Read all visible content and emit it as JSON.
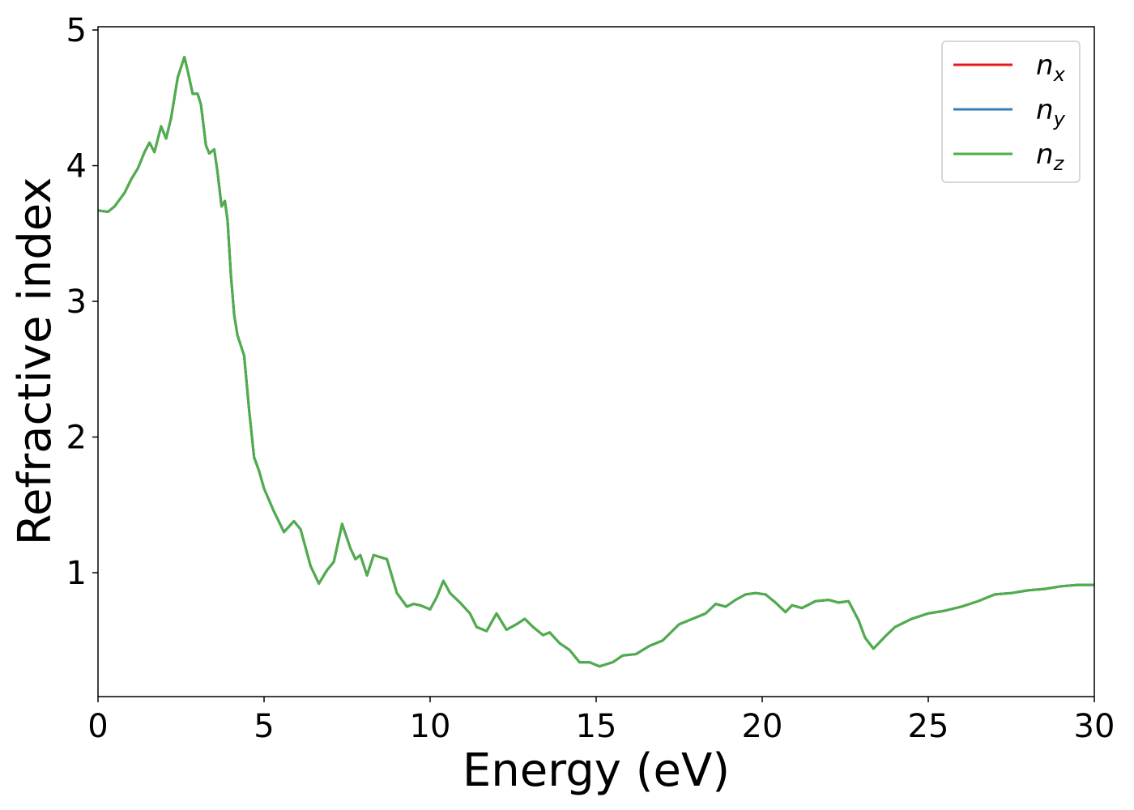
{
  "chart_data": {
    "type": "line",
    "xlabel": "Energy (eV)",
    "ylabel": "Refractive index",
    "x": [
      0,
      0.3,
      0.5,
      0.8,
      1.0,
      1.2,
      1.4,
      1.55,
      1.7,
      1.9,
      2.05,
      2.2,
      2.4,
      2.6,
      2.7,
      2.85,
      3.0,
      3.1,
      3.25,
      3.35,
      3.5,
      3.6,
      3.72,
      3.82,
      3.9,
      4.0,
      4.1,
      4.2,
      4.4,
      4.55,
      4.7,
      4.85,
      5.0,
      5.3,
      5.6,
      5.9,
      6.1,
      6.4,
      6.65,
      6.9,
      7.1,
      7.35,
      7.6,
      7.75,
      7.9,
      8.1,
      8.3,
      8.7,
      9.0,
      9.3,
      9.5,
      9.7,
      10.0,
      10.2,
      10.4,
      10.6,
      10.9,
      11.2,
      11.4,
      11.7,
      12.0,
      12.3,
      12.6,
      12.85,
      13.1,
      13.4,
      13.6,
      13.9,
      14.2,
      14.5,
      14.8,
      15.1,
      15.5,
      15.8,
      16.2,
      16.6,
      17.0,
      17.5,
      18.0,
      18.3,
      18.6,
      18.9,
      19.2,
      19.5,
      19.8,
      20.1,
      20.4,
      20.7,
      20.9,
      21.2,
      21.6,
      22.0,
      22.3,
      22.6,
      22.9,
      23.1,
      23.35,
      23.7,
      24.0,
      24.5,
      25.0,
      25.5,
      26.0,
      26.5,
      27.0,
      27.5,
      28.0,
      28.5,
      29.0,
      29.5,
      30.0
    ],
    "series": [
      {
        "name": "nx",
        "color": "#e41a1c",
        "values": [
          3.67,
          3.66,
          3.7,
          3.8,
          3.9,
          3.98,
          4.1,
          4.17,
          4.1,
          4.29,
          4.2,
          4.35,
          4.65,
          4.8,
          4.7,
          4.53,
          4.53,
          4.45,
          4.15,
          4.09,
          4.12,
          3.95,
          3.7,
          3.74,
          3.6,
          3.2,
          2.9,
          2.75,
          2.6,
          2.2,
          1.85,
          1.75,
          1.62,
          1.45,
          1.3,
          1.38,
          1.32,
          1.05,
          0.92,
          1.02,
          1.08,
          1.36,
          1.18,
          1.1,
          1.13,
          0.98,
          1.13,
          1.1,
          0.85,
          0.75,
          0.77,
          0.76,
          0.73,
          0.82,
          0.94,
          0.85,
          0.78,
          0.7,
          0.6,
          0.57,
          0.7,
          0.58,
          0.62,
          0.66,
          0.6,
          0.54,
          0.56,
          0.48,
          0.43,
          0.34,
          0.34,
          0.31,
          0.34,
          0.39,
          0.4,
          0.46,
          0.5,
          0.62,
          0.67,
          0.7,
          0.77,
          0.75,
          0.8,
          0.84,
          0.85,
          0.84,
          0.78,
          0.71,
          0.76,
          0.74,
          0.79,
          0.8,
          0.78,
          0.79,
          0.65,
          0.52,
          0.44,
          0.53,
          0.6,
          0.66,
          0.7,
          0.72,
          0.75,
          0.79,
          0.84,
          0.85,
          0.87,
          0.88,
          0.9,
          0.91,
          0.91
        ]
      },
      {
        "name": "ny",
        "color": "#377eb8",
        "values": [
          3.67,
          3.66,
          3.7,
          3.8,
          3.9,
          3.98,
          4.1,
          4.17,
          4.1,
          4.29,
          4.2,
          4.35,
          4.65,
          4.8,
          4.7,
          4.53,
          4.53,
          4.45,
          4.15,
          4.09,
          4.12,
          3.95,
          3.7,
          3.74,
          3.6,
          3.2,
          2.9,
          2.75,
          2.6,
          2.2,
          1.85,
          1.75,
          1.62,
          1.45,
          1.3,
          1.38,
          1.32,
          1.05,
          0.92,
          1.02,
          1.08,
          1.36,
          1.18,
          1.1,
          1.13,
          0.98,
          1.13,
          1.1,
          0.85,
          0.75,
          0.77,
          0.76,
          0.73,
          0.82,
          0.94,
          0.85,
          0.78,
          0.7,
          0.6,
          0.57,
          0.7,
          0.58,
          0.62,
          0.66,
          0.6,
          0.54,
          0.56,
          0.48,
          0.43,
          0.34,
          0.34,
          0.31,
          0.34,
          0.39,
          0.4,
          0.46,
          0.5,
          0.62,
          0.67,
          0.7,
          0.77,
          0.75,
          0.8,
          0.84,
          0.85,
          0.84,
          0.78,
          0.71,
          0.76,
          0.74,
          0.79,
          0.8,
          0.78,
          0.79,
          0.65,
          0.52,
          0.44,
          0.53,
          0.6,
          0.66,
          0.7,
          0.72,
          0.75,
          0.79,
          0.84,
          0.85,
          0.87,
          0.88,
          0.9,
          0.91,
          0.91
        ]
      },
      {
        "name": "nz",
        "color": "#4daf4a",
        "values": [
          3.67,
          3.66,
          3.7,
          3.8,
          3.9,
          3.98,
          4.1,
          4.17,
          4.1,
          4.29,
          4.2,
          4.35,
          4.65,
          4.8,
          4.7,
          4.53,
          4.53,
          4.45,
          4.15,
          4.09,
          4.12,
          3.95,
          3.7,
          3.74,
          3.6,
          3.2,
          2.9,
          2.75,
          2.6,
          2.2,
          1.85,
          1.75,
          1.62,
          1.45,
          1.3,
          1.38,
          1.32,
          1.05,
          0.92,
          1.02,
          1.08,
          1.36,
          1.18,
          1.1,
          1.13,
          0.98,
          1.13,
          1.1,
          0.85,
          0.75,
          0.77,
          0.76,
          0.73,
          0.82,
          0.94,
          0.85,
          0.78,
          0.7,
          0.6,
          0.57,
          0.7,
          0.58,
          0.62,
          0.66,
          0.6,
          0.54,
          0.56,
          0.48,
          0.43,
          0.34,
          0.34,
          0.31,
          0.34,
          0.39,
          0.4,
          0.46,
          0.5,
          0.62,
          0.67,
          0.7,
          0.77,
          0.75,
          0.8,
          0.84,
          0.85,
          0.84,
          0.78,
          0.71,
          0.76,
          0.74,
          0.79,
          0.8,
          0.78,
          0.79,
          0.65,
          0.52,
          0.44,
          0.53,
          0.6,
          0.66,
          0.7,
          0.72,
          0.75,
          0.79,
          0.84,
          0.85,
          0.87,
          0.88,
          0.9,
          0.91,
          0.91
        ]
      }
    ],
    "xlim": [
      0,
      30
    ],
    "xticks": [
      0,
      5,
      10,
      15,
      20,
      25,
      30
    ],
    "ylim": [
      0.087,
      5.024
    ],
    "yticks": [
      1,
      2,
      3,
      4,
      5
    ],
    "grid": false,
    "legend": "upper right"
  }
}
